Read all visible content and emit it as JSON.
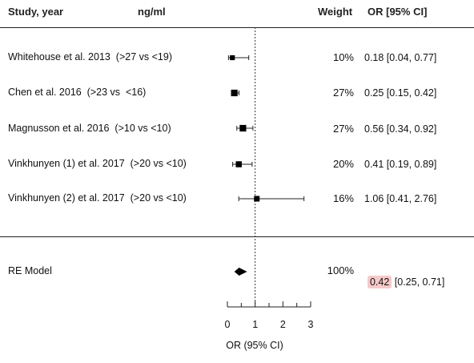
{
  "header": {
    "study_label": "Study, year",
    "unit_label": "ng/ml",
    "weight_label": "Weight",
    "or_label": "OR [95% CI]"
  },
  "chart_data": {
    "type": "forest",
    "xlabel": "OR (95% CI)",
    "xticks": [
      0,
      1,
      2,
      3
    ],
    "xlim": [
      0,
      3
    ],
    "reference_line": 1,
    "studies": [
      {
        "label": "Whitehouse et al. 2013  (>27 vs <19)",
        "weight": "10%",
        "ci_text": "0.18 [0.04, 0.77]",
        "or": 0.18,
        "lower": 0.04,
        "upper": 0.77,
        "w": 10
      },
      {
        "label": "Chen et al. 2016  (>23 vs  <16)",
        "weight": "27%",
        "ci_text": "0.25 [0.15, 0.42]",
        "or": 0.25,
        "lower": 0.15,
        "upper": 0.42,
        "w": 27
      },
      {
        "label": "Magnusson et al. 2016  (>10 vs <10)",
        "weight": "27%",
        "ci_text": "0.56 [0.34, 0.92]",
        "or": 0.56,
        "lower": 0.34,
        "upper": 0.92,
        "w": 27
      },
      {
        "label": "Vinkhunyen (1) et al. 2017  (>20 vs <10)",
        "weight": "20%",
        "ci_text": "0.41 [0.19, 0.89]",
        "or": 0.41,
        "lower": 0.19,
        "upper": 0.89,
        "w": 20
      },
      {
        "label": "Vinkhunyen (2) et al. 2017  (>20 vs <10)",
        "weight": "16%",
        "ci_text": "1.06 [0.41, 2.76]",
        "or": 1.06,
        "lower": 0.41,
        "upper": 2.76,
        "w": 16
      }
    ],
    "summary": {
      "label": "RE Model",
      "weight": "100%",
      "or_text": "0.42",
      "ci_text": " [0.25, 0.71]",
      "or": 0.42,
      "lower": 0.25,
      "upper": 0.71
    },
    "highlight_color": "#f6c9c9"
  }
}
